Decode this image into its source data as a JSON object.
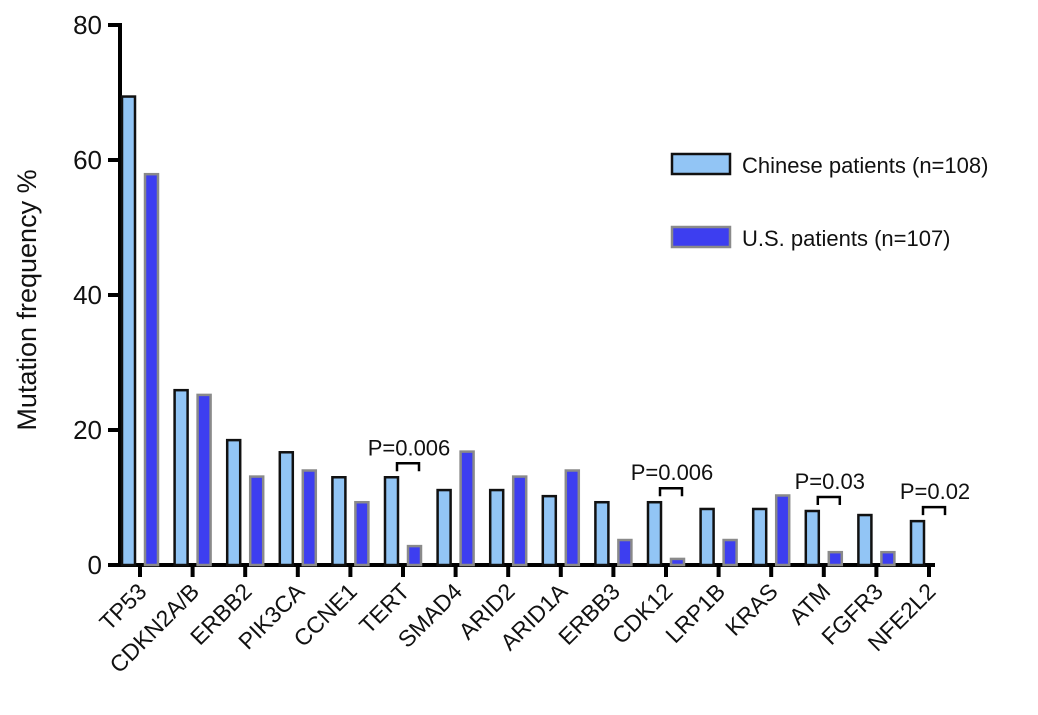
{
  "chart_data": {
    "type": "bar",
    "ylabel": "Mutation frequency %",
    "xlabel": "",
    "ylim": [
      0,
      80
    ],
    "yticks": [
      0,
      20,
      40,
      60,
      80
    ],
    "grid": false,
    "legend_position": "top-right",
    "categories": [
      "TP53",
      "CDKN2A/B",
      "ERBB2",
      "PIK3CA",
      "CCNE1",
      "TERT",
      "SMAD4",
      "ARID2",
      "ARID1A",
      "ERBB3",
      "CDK12",
      "LRP1B",
      "KRAS",
      "ATM",
      "FGFR3",
      "NFE2L2"
    ],
    "series": [
      {
        "name": "Chinese patients (n=108)",
        "color": "#92c5f5",
        "values": [
          69.4,
          25.9,
          18.5,
          16.7,
          13.0,
          13.0,
          11.1,
          11.1,
          10.2,
          9.3,
          9.3,
          8.3,
          8.3,
          8.0,
          7.4,
          6.5
        ]
      },
      {
        "name": "U.S. patients (n=107)",
        "color": "#3d3ef0",
        "values": [
          57.9,
          25.2,
          13.1,
          14.0,
          9.3,
          2.8,
          16.8,
          13.1,
          14.0,
          3.7,
          0.9,
          3.7,
          10.3,
          1.9,
          1.9,
          0
        ]
      }
    ],
    "annotations": [
      {
        "category": "TERT",
        "text": "P=0.006"
      },
      {
        "category": "CDK12",
        "text": "P=0.006"
      },
      {
        "category": "ATM",
        "text": "P=0.03"
      },
      {
        "category": "NFE2L2",
        "text": "P=0.02"
      }
    ]
  }
}
